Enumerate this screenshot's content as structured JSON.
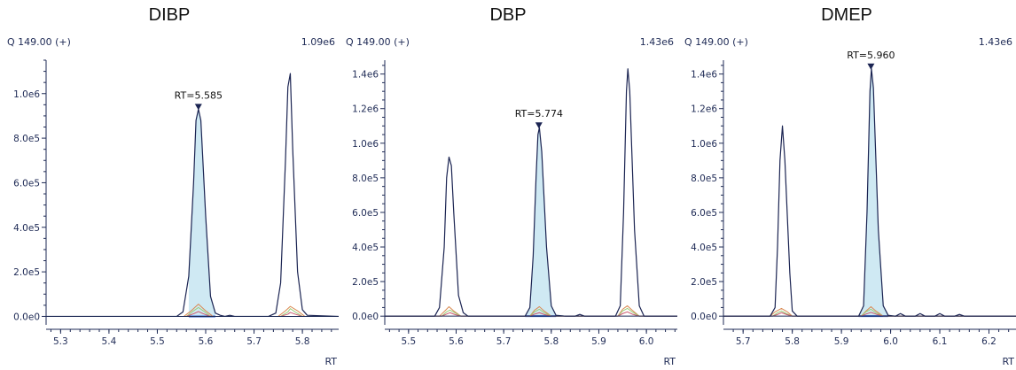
{
  "colors": {
    "axis": "#1e2a55",
    "main_trace": "#1b2452",
    "qualifier_1": "#d98850",
    "qualifier_2": "#9ccc78",
    "qualifier_3": "#c9566b",
    "peak_fill": "#cfe9f3",
    "marker": "#1b2452"
  },
  "chart_data": [
    {
      "type": "line",
      "title": "DIBP",
      "trace_label": "Q 149.00 (+)",
      "max_label": "1.09e6",
      "xlabel": "RT",
      "xlim": [
        5.27,
        5.875
      ],
      "ylim": [
        -30000,
        1150000
      ],
      "x_ticks": [
        5.3,
        5.4,
        5.5,
        5.6,
        5.7,
        5.8
      ],
      "x_tick_labels": [
        "5.3",
        "5.4",
        "5.5",
        "5.6",
        "5.7",
        "5.8"
      ],
      "y_ticks": [
        0,
        200000,
        400000,
        600000,
        800000,
        1000000
      ],
      "y_tick_labels": [
        "0.0e0",
        "2.0e5",
        "4.0e5",
        "6.0e5",
        "8.0e5",
        "1.0e6"
      ],
      "integrated_peak": {
        "start": 5.555,
        "end": 5.625
      },
      "peak_marker": {
        "rt": 5.585,
        "intensity": 930000,
        "label": "RT=5.585"
      },
      "series": [
        {
          "role": "main",
          "x": [
            5.27,
            5.54,
            5.553,
            5.565,
            5.575,
            5.58,
            5.585,
            5.59,
            5.6,
            5.61,
            5.62,
            5.63,
            5.64,
            5.65,
            5.66,
            5.67,
            5.7,
            5.73,
            5.745,
            5.755,
            5.765,
            5.77,
            5.775,
            5.78,
            5.79,
            5.8,
            5.81,
            5.875
          ],
          "y": [
            0,
            0,
            20000,
            180000,
            600000,
            880000,
            930000,
            880000,
            450000,
            90000,
            15000,
            5000,
            0,
            5000,
            0,
            0,
            0,
            0,
            15000,
            150000,
            700000,
            1030000,
            1090000,
            750000,
            200000,
            30000,
            5000,
            0
          ]
        },
        {
          "role": "qualifier",
          "color_key": "qualifier_1",
          "x": [
            5.27,
            5.555,
            5.57,
            5.585,
            5.6,
            5.615,
            5.75,
            5.765,
            5.775,
            5.79,
            5.805,
            5.875
          ],
          "y": [
            0,
            0,
            25000,
            55000,
            25000,
            0,
            0,
            25000,
            45000,
            25000,
            0,
            0
          ]
        },
        {
          "role": "qualifier",
          "color_key": "qualifier_2",
          "x": [
            5.27,
            5.56,
            5.575,
            5.585,
            5.595,
            5.61,
            5.755,
            5.77,
            5.775,
            5.785,
            5.8,
            5.875
          ],
          "y": [
            0,
            0,
            25000,
            40000,
            25000,
            0,
            0,
            20000,
            35000,
            20000,
            0,
            0
          ]
        },
        {
          "role": "qualifier",
          "color_key": "qualifier_3",
          "x": [
            5.27,
            5.56,
            5.575,
            5.585,
            5.595,
            5.61,
            5.755,
            5.77,
            5.775,
            5.785,
            5.8,
            5.875
          ],
          "y": [
            0,
            0,
            12000,
            22000,
            12000,
            0,
            0,
            10000,
            18000,
            10000,
            0,
            0
          ]
        }
      ]
    },
    {
      "type": "line",
      "title": "DBP",
      "trace_label": "Q 149.00 (+)",
      "max_label": "1.43e6",
      "xlabel": "RT",
      "xlim": [
        5.45,
        6.065
      ],
      "ylim": [
        -40000,
        1480000
      ],
      "x_ticks": [
        5.5,
        5.6,
        5.7,
        5.8,
        5.9,
        6.0
      ],
      "x_tick_labels": [
        "5.5",
        "5.6",
        "5.7",
        "5.8",
        "5.9",
        "6.0"
      ],
      "y_ticks": [
        0,
        200000,
        400000,
        600000,
        800000,
        1000000,
        1200000,
        1400000
      ],
      "y_tick_labels": [
        "0.0e0",
        "2.0e5",
        "4.0e5",
        "6.0e5",
        "8.0e5",
        "1.0e6",
        "1.2e6",
        "1.4e6"
      ],
      "integrated_peak": {
        "start": 5.745,
        "end": 5.81
      },
      "peak_marker": {
        "rt": 5.774,
        "intensity": 1090000,
        "label": "RT=5.774"
      },
      "series": [
        {
          "role": "main",
          "x": [
            5.45,
            5.555,
            5.565,
            5.575,
            5.58,
            5.585,
            5.59,
            5.595,
            5.605,
            5.615,
            5.625,
            5.65,
            5.745,
            5.755,
            5.762,
            5.768,
            5.772,
            5.775,
            5.78,
            5.79,
            5.8,
            5.81,
            5.83,
            5.85,
            5.86,
            5.87,
            5.935,
            5.945,
            5.952,
            5.958,
            5.961,
            5.965,
            5.975,
            5.985,
            5.995,
            6.065
          ],
          "y": [
            0,
            0,
            50000,
            400000,
            800000,
            920000,
            870000,
            600000,
            120000,
            20000,
            0,
            0,
            0,
            50000,
            350000,
            800000,
            1050000,
            1090000,
            950000,
            400000,
            60000,
            5000,
            0,
            0,
            10000,
            0,
            0,
            60000,
            600000,
            1300000,
            1430000,
            1300000,
            500000,
            60000,
            0,
            0
          ]
        },
        {
          "role": "qualifier",
          "color_key": "qualifier_1",
          "x": [
            5.45,
            5.565,
            5.578,
            5.585,
            5.595,
            5.61,
            5.755,
            5.765,
            5.775,
            5.785,
            5.8,
            5.94,
            5.95,
            5.96,
            5.97,
            5.985,
            6.065
          ],
          "y": [
            0,
            0,
            35000,
            55000,
            30000,
            0,
            0,
            35000,
            55000,
            30000,
            0,
            0,
            40000,
            60000,
            35000,
            0,
            0
          ]
        },
        {
          "role": "qualifier",
          "color_key": "qualifier_2",
          "x": [
            5.45,
            5.57,
            5.58,
            5.587,
            5.597,
            5.61,
            5.755,
            5.765,
            5.775,
            5.785,
            5.8,
            5.94,
            5.95,
            5.96,
            5.97,
            5.985,
            6.065
          ],
          "y": [
            0,
            0,
            25000,
            35000,
            20000,
            0,
            0,
            25000,
            40000,
            20000,
            0,
            0,
            30000,
            45000,
            25000,
            0,
            0
          ]
        },
        {
          "role": "qualifier",
          "color_key": "qualifier_3",
          "x": [
            5.45,
            5.57,
            5.58,
            5.587,
            5.597,
            5.61,
            5.755,
            5.765,
            5.775,
            5.785,
            5.8,
            5.94,
            5.95,
            5.96,
            5.97,
            5.985,
            6.065
          ],
          "y": [
            0,
            0,
            12000,
            20000,
            10000,
            0,
            0,
            12000,
            20000,
            10000,
            0,
            0,
            15000,
            25000,
            12000,
            0,
            0
          ]
        }
      ]
    },
    {
      "type": "line",
      "title": "DMEP",
      "trace_label": "Q 149.00 (+)",
      "max_label": "1.43e6",
      "xlabel": "RT",
      "xlim": [
        5.66,
        6.255
      ],
      "ylim": [
        -40000,
        1480000
      ],
      "x_ticks": [
        5.7,
        5.8,
        5.9,
        6.0,
        6.1,
        6.2
      ],
      "x_tick_labels": [
        "5.7",
        "5.8",
        "5.9",
        "6.0",
        "6.1",
        "6.2"
      ],
      "y_ticks": [
        0,
        200000,
        400000,
        600000,
        800000,
        1000000,
        1200000,
        1400000
      ],
      "y_tick_labels": [
        "0.0e0",
        "2.0e5",
        "4.0e5",
        "6.0e5",
        "8.0e5",
        "1.0e6",
        "1.2e6",
        "1.4e6"
      ],
      "integrated_peak": {
        "start": 5.935,
        "end": 5.995
      },
      "peak_marker": {
        "rt": 5.96,
        "intensity": 1430000,
        "label": "RT=5.960"
      },
      "series": [
        {
          "role": "main",
          "x": [
            5.66,
            5.755,
            5.765,
            5.77,
            5.775,
            5.78,
            5.785,
            5.795,
            5.8,
            5.81,
            5.82,
            5.9,
            5.935,
            5.945,
            5.952,
            5.958,
            5.961,
            5.965,
            5.975,
            5.985,
            5.995,
            6.01,
            6.02,
            6.03,
            6.05,
            6.06,
            6.07,
            6.09,
            6.1,
            6.11,
            6.13,
            6.14,
            6.15,
            6.255
          ],
          "y": [
            0,
            0,
            50000,
            400000,
            900000,
            1100000,
            900000,
            250000,
            30000,
            0,
            0,
            0,
            0,
            60000,
            600000,
            1300000,
            1430000,
            1320000,
            500000,
            60000,
            5000,
            0,
            15000,
            0,
            0,
            15000,
            0,
            0,
            15000,
            0,
            0,
            10000,
            0,
            0
          ]
        },
        {
          "role": "qualifier",
          "color_key": "qualifier_1",
          "x": [
            5.66,
            5.755,
            5.765,
            5.778,
            5.79,
            5.8,
            5.94,
            5.95,
            5.96,
            5.97,
            5.985,
            6.255
          ],
          "y": [
            0,
            0,
            25000,
            45000,
            25000,
            0,
            0,
            30000,
            55000,
            30000,
            0,
            0
          ]
        },
        {
          "role": "qualifier",
          "color_key": "qualifier_2",
          "x": [
            5.66,
            5.76,
            5.77,
            5.778,
            5.788,
            5.8,
            5.94,
            5.95,
            5.96,
            5.97,
            5.985,
            6.255
          ],
          "y": [
            0,
            0,
            20000,
            30000,
            15000,
            0,
            0,
            25000,
            40000,
            20000,
            0,
            0
          ]
        },
        {
          "role": "qualifier",
          "color_key": "qualifier_3",
          "x": [
            5.66,
            5.76,
            5.77,
            5.778,
            5.788,
            5.8,
            5.94,
            5.95,
            5.96,
            5.97,
            5.985,
            6.255
          ],
          "y": [
            0,
            0,
            10000,
            20000,
            10000,
            0,
            0,
            12000,
            22000,
            12000,
            0,
            0
          ]
        }
      ]
    }
  ]
}
